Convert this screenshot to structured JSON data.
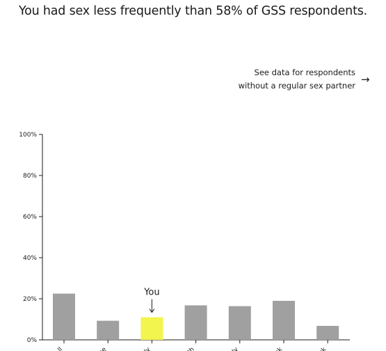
{
  "headline": "You had sex less frequently than 58% of GSS respondents.",
  "see_data_link": "See data for respondents without a regular sex partner",
  "see_data_arrow": "→",
  "chart_data": {
    "type": "bar",
    "y_ticks": [
      "0%",
      "20%",
      "40%",
      "60%",
      "80%",
      "100%"
    ],
    "ylim": [
      0,
      100
    ],
    "categories": [
      "ll",
      "ce",
      "ly",
      "th",
      "ly",
      "ek",
      "ek"
    ],
    "values": [
      22.5,
      9.3,
      11,
      16.8,
      16.4,
      19,
      6.8
    ],
    "highlight_index": 2,
    "highlight_label": "You",
    "colors": {
      "bar": "#a0a0a0",
      "highlight": "#f1f54e",
      "axis": "#1a1a1a"
    }
  }
}
